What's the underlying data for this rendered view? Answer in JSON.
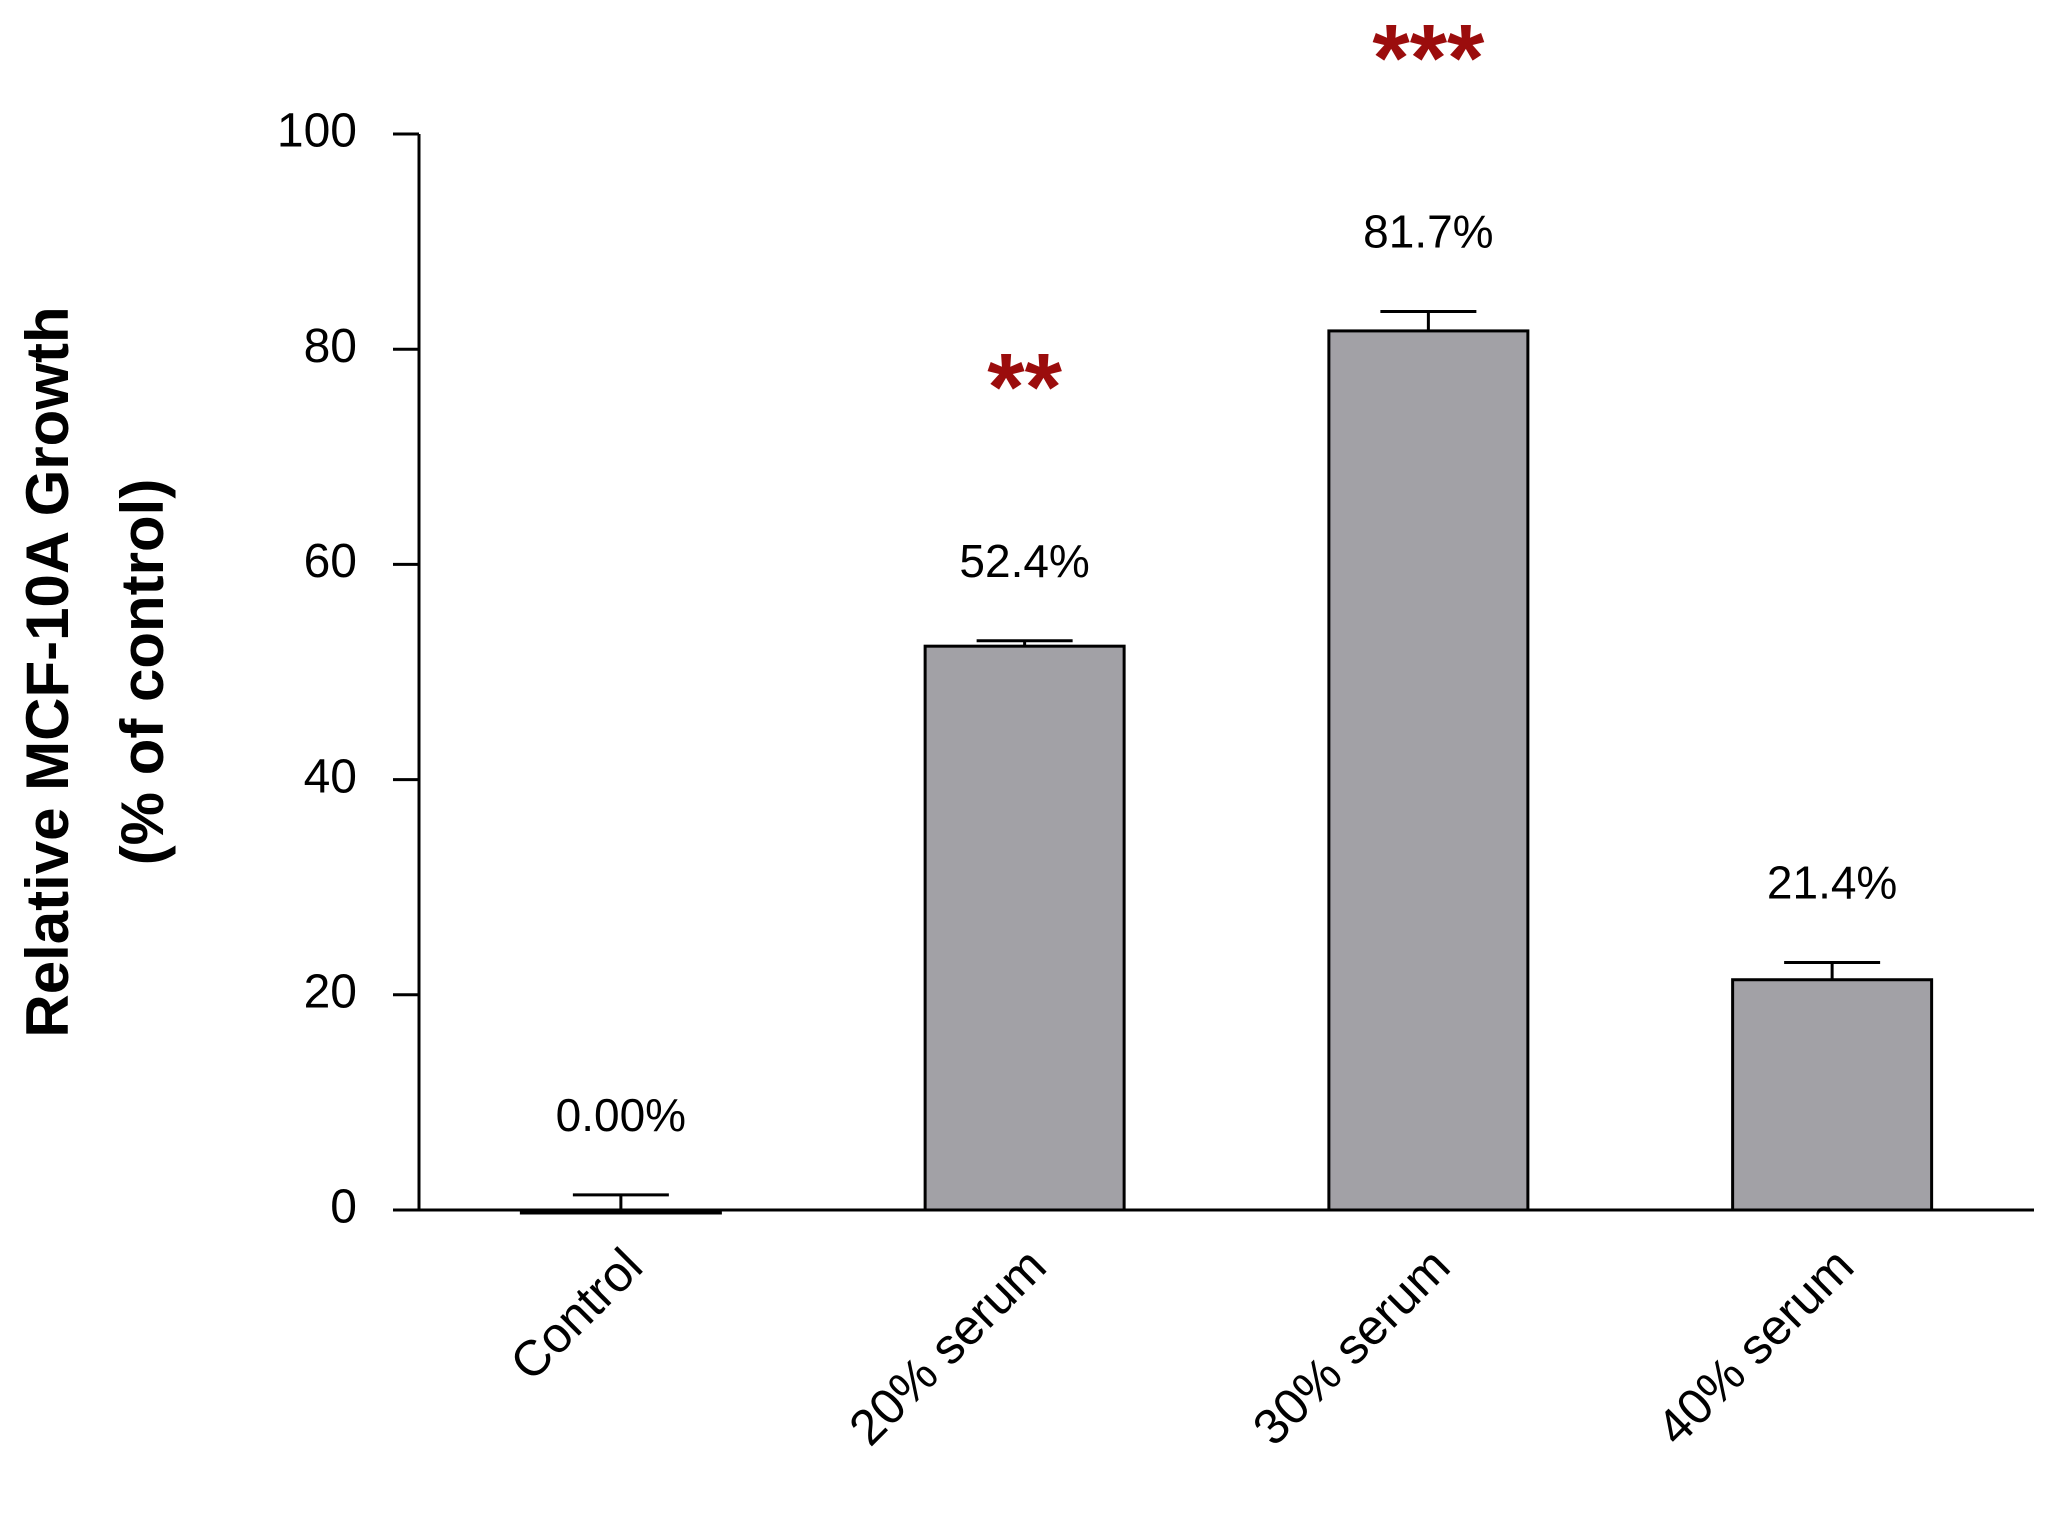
{
  "chart_data": {
    "type": "bar",
    "y_label_lines": [
      "Relative MCF-10A Growth",
      "(% of control)"
    ],
    "categories": [
      "Control",
      "20% serum",
      "30% serum",
      "40% serum"
    ],
    "values": [
      0,
      52.4,
      81.7,
      21.4
    ],
    "value_labels": [
      "0.00%",
      "52.4%",
      "81.7%",
      "21.4%"
    ],
    "errors": [
      1.4,
      0.5,
      1.8,
      1.6
    ],
    "significance": [
      null,
      "**",
      "***",
      null
    ],
    "color": "#a2a1a6",
    "significance_color": "#9b0d0d",
    "ylim": [
      0,
      100
    ],
    "yticks": [
      0,
      20,
      40,
      60,
      80,
      100
    ],
    "grid": false
  }
}
